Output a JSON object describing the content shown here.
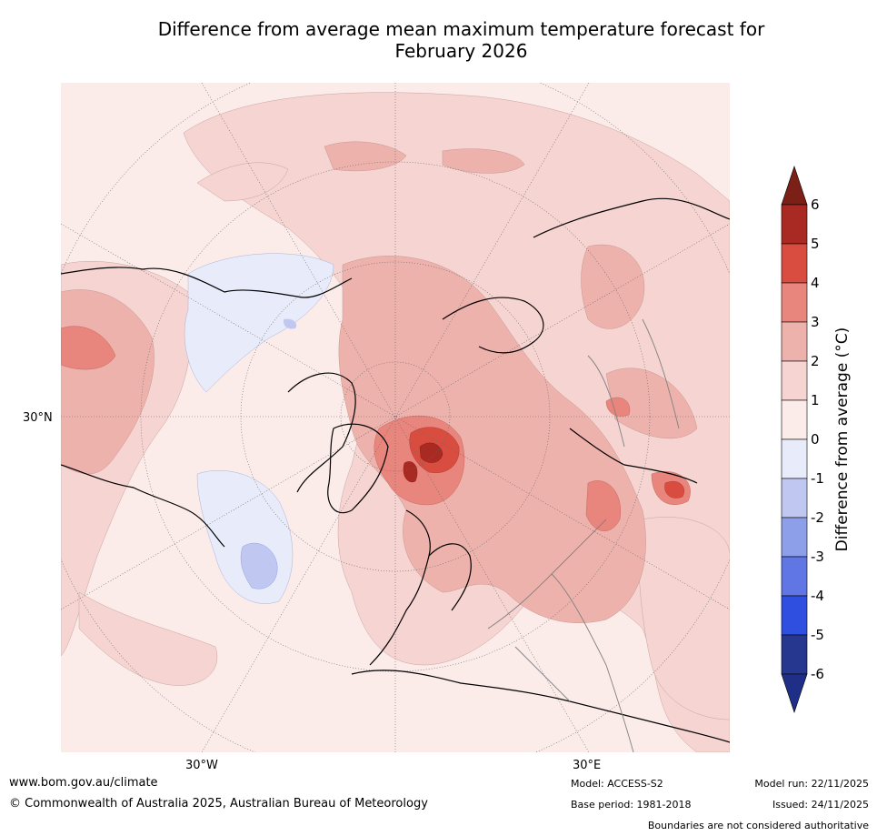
{
  "title": {
    "line1": "Difference from average mean maximum temperature forecast for",
    "line2": "February 2026"
  },
  "map": {
    "lat_label": "30°N",
    "lon_label_west": "30°W",
    "lon_label_east": "30°E"
  },
  "colorbar": {
    "label": "Difference from average (°C)",
    "ticks": [
      "6",
      "5",
      "4",
      "3",
      "2",
      "1",
      "0",
      "-1",
      "-2",
      "-3",
      "-4",
      "-5",
      "-6"
    ],
    "colors": [
      "#7b1f17",
      "#a92a22",
      "#d94d40",
      "#e8857d",
      "#eeb2ad",
      "#f5d4d1",
      "#fbecea",
      "#e8ebfa",
      "#c0c8f2",
      "#8e9fe9",
      "#5f76e4",
      "#2f4fe0",
      "#26378f",
      "#1f2e86"
    ]
  },
  "footer": {
    "website": "www.bom.gov.au/climate",
    "copyright": "© Commonwealth of Australia 2025, Australian Bureau of Meteorology",
    "model": "Model: ACCESS-S2",
    "base_period": "Base period: 1981-2018",
    "model_run": "Model run: 22/11/2025",
    "issued": "Issued: 24/11/2025",
    "disclaimer": "Boundaries are not considered authoritative"
  }
}
